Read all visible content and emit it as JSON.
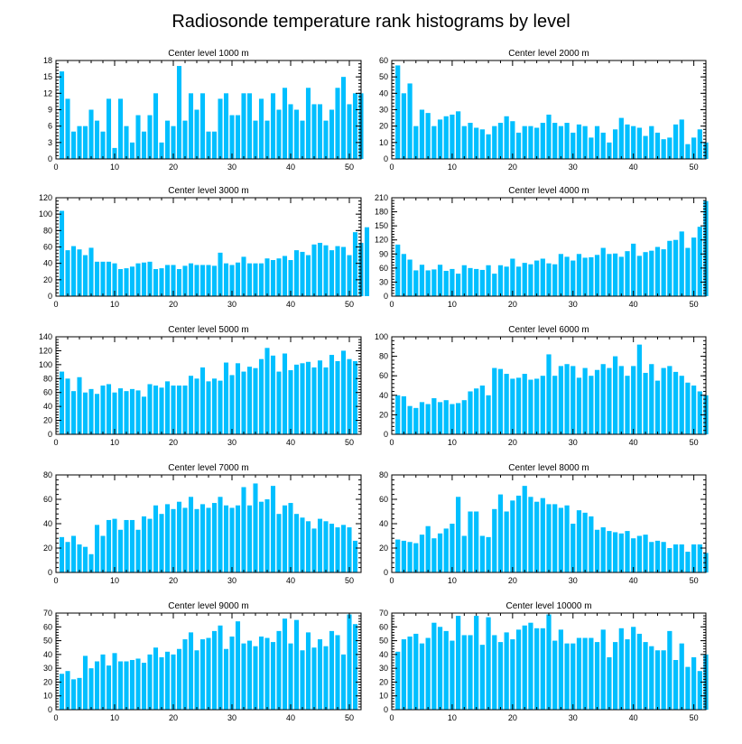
{
  "title": "Radiosonde temperature rank histograms by level",
  "style": {
    "bar_color": "#00bfff",
    "axis_color": "#000000"
  },
  "chart_data": [
    {
      "type": "bar",
      "title": "Center level 1000 m",
      "xlim": [
        0,
        52
      ],
      "ylim": [
        0,
        18
      ],
      "xticks": [
        0,
        10,
        20,
        30,
        40,
        50
      ],
      "yticks": [
        0,
        3,
        6,
        9,
        12,
        15,
        18
      ],
      "values": [
        16,
        11,
        5,
        6,
        6,
        9,
        7,
        5,
        11,
        2,
        11,
        6,
        3,
        8,
        5,
        8,
        12,
        3,
        7,
        6,
        17,
        7,
        12,
        9,
        12,
        5,
        5,
        11,
        12,
        8,
        8,
        12,
        12,
        7,
        11,
        7,
        12,
        9,
        13,
        10,
        9,
        7,
        13,
        10,
        10,
        7,
        9,
        13,
        15,
        10,
        12,
        12
      ]
    },
    {
      "type": "bar",
      "title": "Center level 2000 m",
      "xlim": [
        0,
        52
      ],
      "ylim": [
        0,
        60
      ],
      "xticks": [
        0,
        10,
        20,
        30,
        40,
        50
      ],
      "yticks": [
        0,
        10,
        20,
        30,
        40,
        50,
        60
      ],
      "values": [
        57,
        40,
        46,
        20,
        30,
        28,
        20,
        24,
        26,
        27,
        29,
        20,
        22,
        19,
        18,
        15,
        20,
        22,
        26,
        23,
        16,
        20,
        20,
        19,
        22,
        27,
        22,
        20,
        22,
        16,
        21,
        20,
        13,
        20,
        16,
        10,
        18,
        25,
        21,
        20,
        19,
        14,
        20,
        16,
        12,
        13,
        21,
        24,
        9,
        13,
        18,
        10
      ]
    },
    {
      "type": "bar",
      "title": "Center level 3000 m",
      "xlim": [
        0,
        52
      ],
      "ylim": [
        0,
        120
      ],
      "xticks": [
        0,
        10,
        20,
        30,
        40,
        50
      ],
      "yticks": [
        0,
        20,
        40,
        60,
        80,
        100,
        120
      ],
      "values": [
        104,
        56,
        61,
        57,
        50,
        59,
        42,
        42,
        42,
        40,
        33,
        34,
        36,
        40,
        41,
        42,
        33,
        34,
        38,
        38,
        33,
        37,
        40,
        38,
        38,
        38,
        37,
        53,
        40,
        38,
        41,
        48,
        40,
        40,
        40,
        46,
        44,
        46,
        49,
        44,
        56,
        54,
        50,
        63,
        65,
        62,
        56,
        61,
        60,
        50,
        78,
        65,
        84
      ]
    },
    {
      "type": "bar",
      "title": "Center level 4000 m",
      "xlim": [
        0,
        52
      ],
      "ylim": [
        0,
        210
      ],
      "xticks": [
        0,
        10,
        20,
        30,
        40,
        50
      ],
      "yticks": [
        0,
        30,
        60,
        90,
        120,
        150,
        180,
        210
      ],
      "values": [
        110,
        90,
        78,
        55,
        67,
        55,
        57,
        67,
        54,
        58,
        48,
        66,
        60,
        58,
        56,
        66,
        48,
        66,
        63,
        80,
        63,
        71,
        68,
        76,
        80,
        70,
        68,
        90,
        84,
        76,
        90,
        82,
        83,
        88,
        103,
        90,
        91,
        84,
        96,
        112,
        86,
        94,
        97,
        105,
        100,
        118,
        120,
        138,
        103,
        125,
        148,
        203
      ]
    },
    {
      "type": "bar",
      "title": "Center level 5000 m",
      "xlim": [
        0,
        52
      ],
      "ylim": [
        0,
        140
      ],
      "xticks": [
        0,
        10,
        20,
        30,
        40,
        50
      ],
      "yticks": [
        0,
        20,
        40,
        60,
        80,
        100,
        120,
        140
      ],
      "values": [
        90,
        80,
        62,
        82,
        60,
        65,
        58,
        70,
        72,
        60,
        66,
        62,
        65,
        63,
        54,
        72,
        70,
        67,
        76,
        70,
        70,
        70,
        84,
        80,
        96,
        76,
        80,
        77,
        103,
        85,
        102,
        90,
        97,
        95,
        108,
        124,
        113,
        90,
        116,
        92,
        100,
        102,
        104,
        96,
        106,
        96,
        114,
        105,
        120,
        108,
        105
      ]
    },
    {
      "type": "bar",
      "title": "Center level 6000 m",
      "xlim": [
        0,
        52
      ],
      "ylim": [
        0,
        100
      ],
      "xticks": [
        0,
        10,
        20,
        30,
        40,
        50
      ],
      "yticks": [
        0,
        20,
        40,
        60,
        80,
        100
      ],
      "values": [
        40,
        39,
        29,
        27,
        33,
        31,
        37,
        33,
        35,
        31,
        32,
        35,
        44,
        47,
        50,
        40,
        68,
        67,
        62,
        57,
        58,
        62,
        56,
        57,
        60,
        82,
        60,
        70,
        72,
        70,
        58,
        68,
        60,
        66,
        72,
        68,
        80,
        70,
        60,
        70,
        92,
        63,
        72,
        55,
        68,
        70,
        64,
        60,
        53,
        50,
        44,
        40
      ]
    },
    {
      "type": "bar",
      "title": "Center level 7000 m",
      "xlim": [
        0,
        52
      ],
      "ylim": [
        0,
        80
      ],
      "xticks": [
        0,
        10,
        20,
        30,
        40,
        50
      ],
      "yticks": [
        0,
        20,
        40,
        60,
        80
      ],
      "values": [
        29,
        25,
        30,
        23,
        21,
        15,
        39,
        30,
        43,
        44,
        35,
        43,
        43,
        35,
        46,
        44,
        55,
        48,
        56,
        52,
        58,
        53,
        62,
        52,
        56,
        53,
        57,
        62,
        55,
        53,
        55,
        70,
        55,
        73,
        58,
        60,
        71,
        48,
        55,
        57,
        48,
        45,
        42,
        36,
        44,
        42,
        40,
        37,
        39,
        37,
        26
      ]
    },
    {
      "type": "bar",
      "title": "Center level 8000 m",
      "xlim": [
        0,
        52
      ],
      "ylim": [
        0,
        80
      ],
      "xticks": [
        0,
        10,
        20,
        30,
        40,
        50
      ],
      "yticks": [
        0,
        20,
        40,
        60,
        80
      ],
      "values": [
        27,
        26,
        25,
        24,
        31,
        38,
        28,
        32,
        36,
        40,
        62,
        30,
        50,
        50,
        30,
        29,
        52,
        64,
        50,
        59,
        63,
        71,
        62,
        58,
        61,
        56,
        56,
        53,
        55,
        40,
        51,
        49,
        46,
        35,
        37,
        34,
        33,
        32,
        34,
        28,
        30,
        31,
        25,
        26,
        25,
        20,
        23,
        23,
        17,
        23,
        23,
        16
      ]
    },
    {
      "type": "bar",
      "title": "Center level 9000 m",
      "xlim": [
        0,
        52
      ],
      "ylim": [
        0,
        70
      ],
      "xticks": [
        0,
        10,
        20,
        30,
        40,
        50
      ],
      "yticks": [
        0,
        10,
        20,
        30,
        40,
        50,
        60,
        70
      ],
      "values": [
        26,
        28,
        22,
        23,
        39,
        30,
        35,
        40,
        32,
        41,
        35,
        35,
        36,
        37,
        34,
        40,
        45,
        38,
        42,
        40,
        44,
        51,
        56,
        43,
        51,
        52,
        57,
        61,
        44,
        53,
        64,
        48,
        50,
        46,
        53,
        52,
        49,
        57,
        66,
        48,
        65,
        43,
        56,
        45,
        51,
        46,
        57,
        54,
        40,
        69,
        62
      ]
    },
    {
      "type": "bar",
      "title": "Center level 10000 m",
      "xlim": [
        0,
        52
      ],
      "ylim": [
        0,
        70
      ],
      "xticks": [
        0,
        10,
        20,
        30,
        40,
        50
      ],
      "yticks": [
        0,
        10,
        20,
        30,
        40,
        50,
        60,
        70
      ],
      "values": [
        42,
        51,
        53,
        55,
        48,
        52,
        63,
        60,
        57,
        50,
        68,
        54,
        54,
        68,
        47,
        67,
        54,
        49,
        56,
        51,
        58,
        61,
        63,
        59,
        59,
        69,
        50,
        58,
        48,
        48,
        52,
        52,
        52,
        49,
        58,
        38,
        49,
        59,
        51,
        60,
        55,
        49,
        46,
        43,
        43,
        57,
        36,
        48,
        31,
        38,
        28,
        40
      ]
    }
  ]
}
